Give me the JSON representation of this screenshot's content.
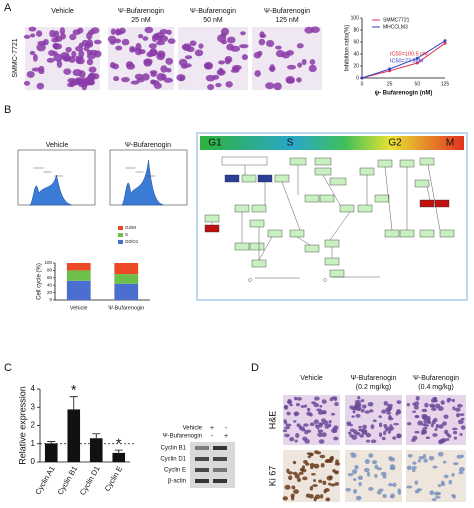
{
  "panel_labels": [
    "A",
    "B",
    "C",
    "D"
  ],
  "panel_a": {
    "row_label": "SMMC-7721",
    "columns": [
      {
        "title": "Vehicle"
      },
      {
        "title": "Ψ-Bufarenogin",
        "dose": "25 nM"
      },
      {
        "title": "Ψ-Bufarenogin",
        "dose": "50 nM"
      },
      {
        "title": "Ψ-Bufarenogin",
        "dose": "125 nM"
      }
    ]
  },
  "panel_b": {
    "histogram_titles": [
      "Vehicle",
      "Ψ-Bufarenogin"
    ],
    "pathway_phases": [
      "G1",
      "S",
      "G2",
      "M"
    ]
  },
  "panel_c_blot": {
    "conditions": [
      {
        "name": "Vehicle",
        "lanes": [
          "+",
          "-"
        ]
      },
      {
        "name": "Ψ-Bufarenogin",
        "lanes": [
          "-",
          "+"
        ]
      }
    ],
    "bands": [
      "Cyclin B1",
      "Cyclin D1",
      "Cyclin E",
      "β-actin"
    ]
  },
  "panel_d": {
    "columns": [
      {
        "title": "Vehicle"
      },
      {
        "title": "Ψ-Bufarenogin",
        "dose": "(0.2 mg/kg)"
      },
      {
        "title": "Ψ-Bufarenogin",
        "dose": "(0.4 mg/kg)"
      }
    ],
    "rows": [
      "H&E",
      "Ki 67"
    ]
  },
  "chart_data": [
    {
      "type": "line",
      "x_label": "ψ- Bufarenogin (nM)",
      "y_label": "Inhibition ratio(%)",
      "categories": [
        "0",
        "25",
        "50",
        "125"
      ],
      "series": [
        {
          "name": "SMMC7721",
          "color": "#e0325a",
          "values": [
            0,
            12,
            25,
            58
          ]
        },
        {
          "name": "MHCCLM3",
          "color": "#3346c0",
          "values": [
            0,
            15,
            33,
            62
          ]
        }
      ],
      "ylim": [
        0,
        100
      ],
      "yticks": [
        0,
        20,
        40,
        60,
        80,
        100
      ],
      "annotations": [
        {
          "text": "IC50=100.5 nM",
          "color": "#e0202a"
        },
        {
          "text": "IC50=77.5nM",
          "color": "#2233cc"
        }
      ]
    },
    {
      "type": "stacked_bar",
      "y_label": "Cell cycle (%)",
      "categories": [
        "Vehicle",
        "Ψ-Bufarenogin"
      ],
      "series": [
        {
          "name": "G0/G1",
          "color": "#4a6fd1",
          "values": [
            52,
            44
          ]
        },
        {
          "name": "S",
          "color": "#6cc04a",
          "values": [
            28,
            26
          ]
        },
        {
          "name": "G2/M",
          "color": "#ec4a24",
          "values": [
            20,
            30
          ]
        }
      ],
      "ylim": [
        0,
        100
      ],
      "yticks": [
        0,
        20,
        40,
        60,
        80,
        100
      ]
    },
    {
      "type": "bar",
      "y_label": "Relative expression",
      "categories": [
        "Cyclin A1",
        "Cyclin B1",
        "Cyclin D1",
        "Cyclin E"
      ],
      "values": [
        1.02,
        2.88,
        1.3,
        0.5
      ],
      "errors": [
        0.1,
        0.7,
        0.25,
        0.15
      ],
      "significance": [
        null,
        "*",
        null,
        "*"
      ],
      "color": "#111111",
      "ylim": [
        0,
        4
      ],
      "yticks": [
        0,
        1,
        2,
        3,
        4
      ],
      "reference_line": 1
    }
  ]
}
